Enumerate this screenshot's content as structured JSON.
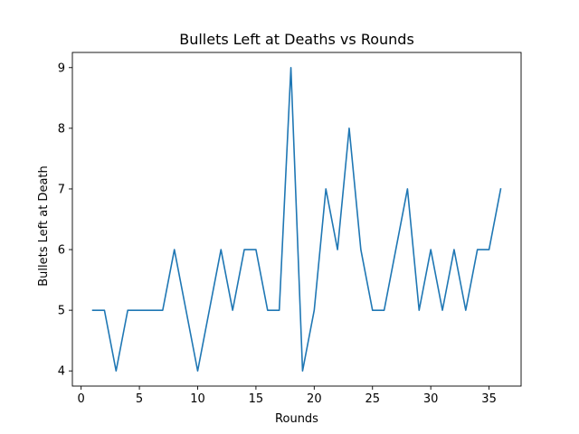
{
  "chart_data": {
    "type": "line",
    "title": "Bullets Left at Deaths vs Rounds",
    "xlabel": "Rounds",
    "ylabel": "Bullets Left at Death",
    "xlim": [
      -0.75,
      37.75
    ],
    "ylim": [
      3.75,
      9.25
    ],
    "xticks": [
      0,
      5,
      10,
      15,
      20,
      25,
      30,
      35
    ],
    "yticks": [
      4,
      5,
      6,
      7,
      8,
      9
    ],
    "grid": false,
    "series": [
      {
        "color": "#1f77b4",
        "x": [
          1,
          2,
          3,
          4,
          5,
          6,
          7,
          8,
          9,
          10,
          11,
          12,
          13,
          14,
          15,
          16,
          17,
          18,
          19,
          20,
          21,
          22,
          23,
          24,
          25,
          26,
          27,
          28,
          29,
          30,
          31,
          32,
          33,
          34,
          35,
          36
        ],
        "y": [
          5,
          5,
          4,
          5,
          5,
          5,
          5,
          6,
          5,
          4,
          5,
          6,
          5,
          6,
          6,
          5,
          5,
          9,
          4,
          5,
          7,
          6,
          8,
          6,
          5,
          5,
          6,
          7,
          5,
          6,
          5,
          6,
          5,
          6,
          6,
          7
        ]
      }
    ]
  }
}
